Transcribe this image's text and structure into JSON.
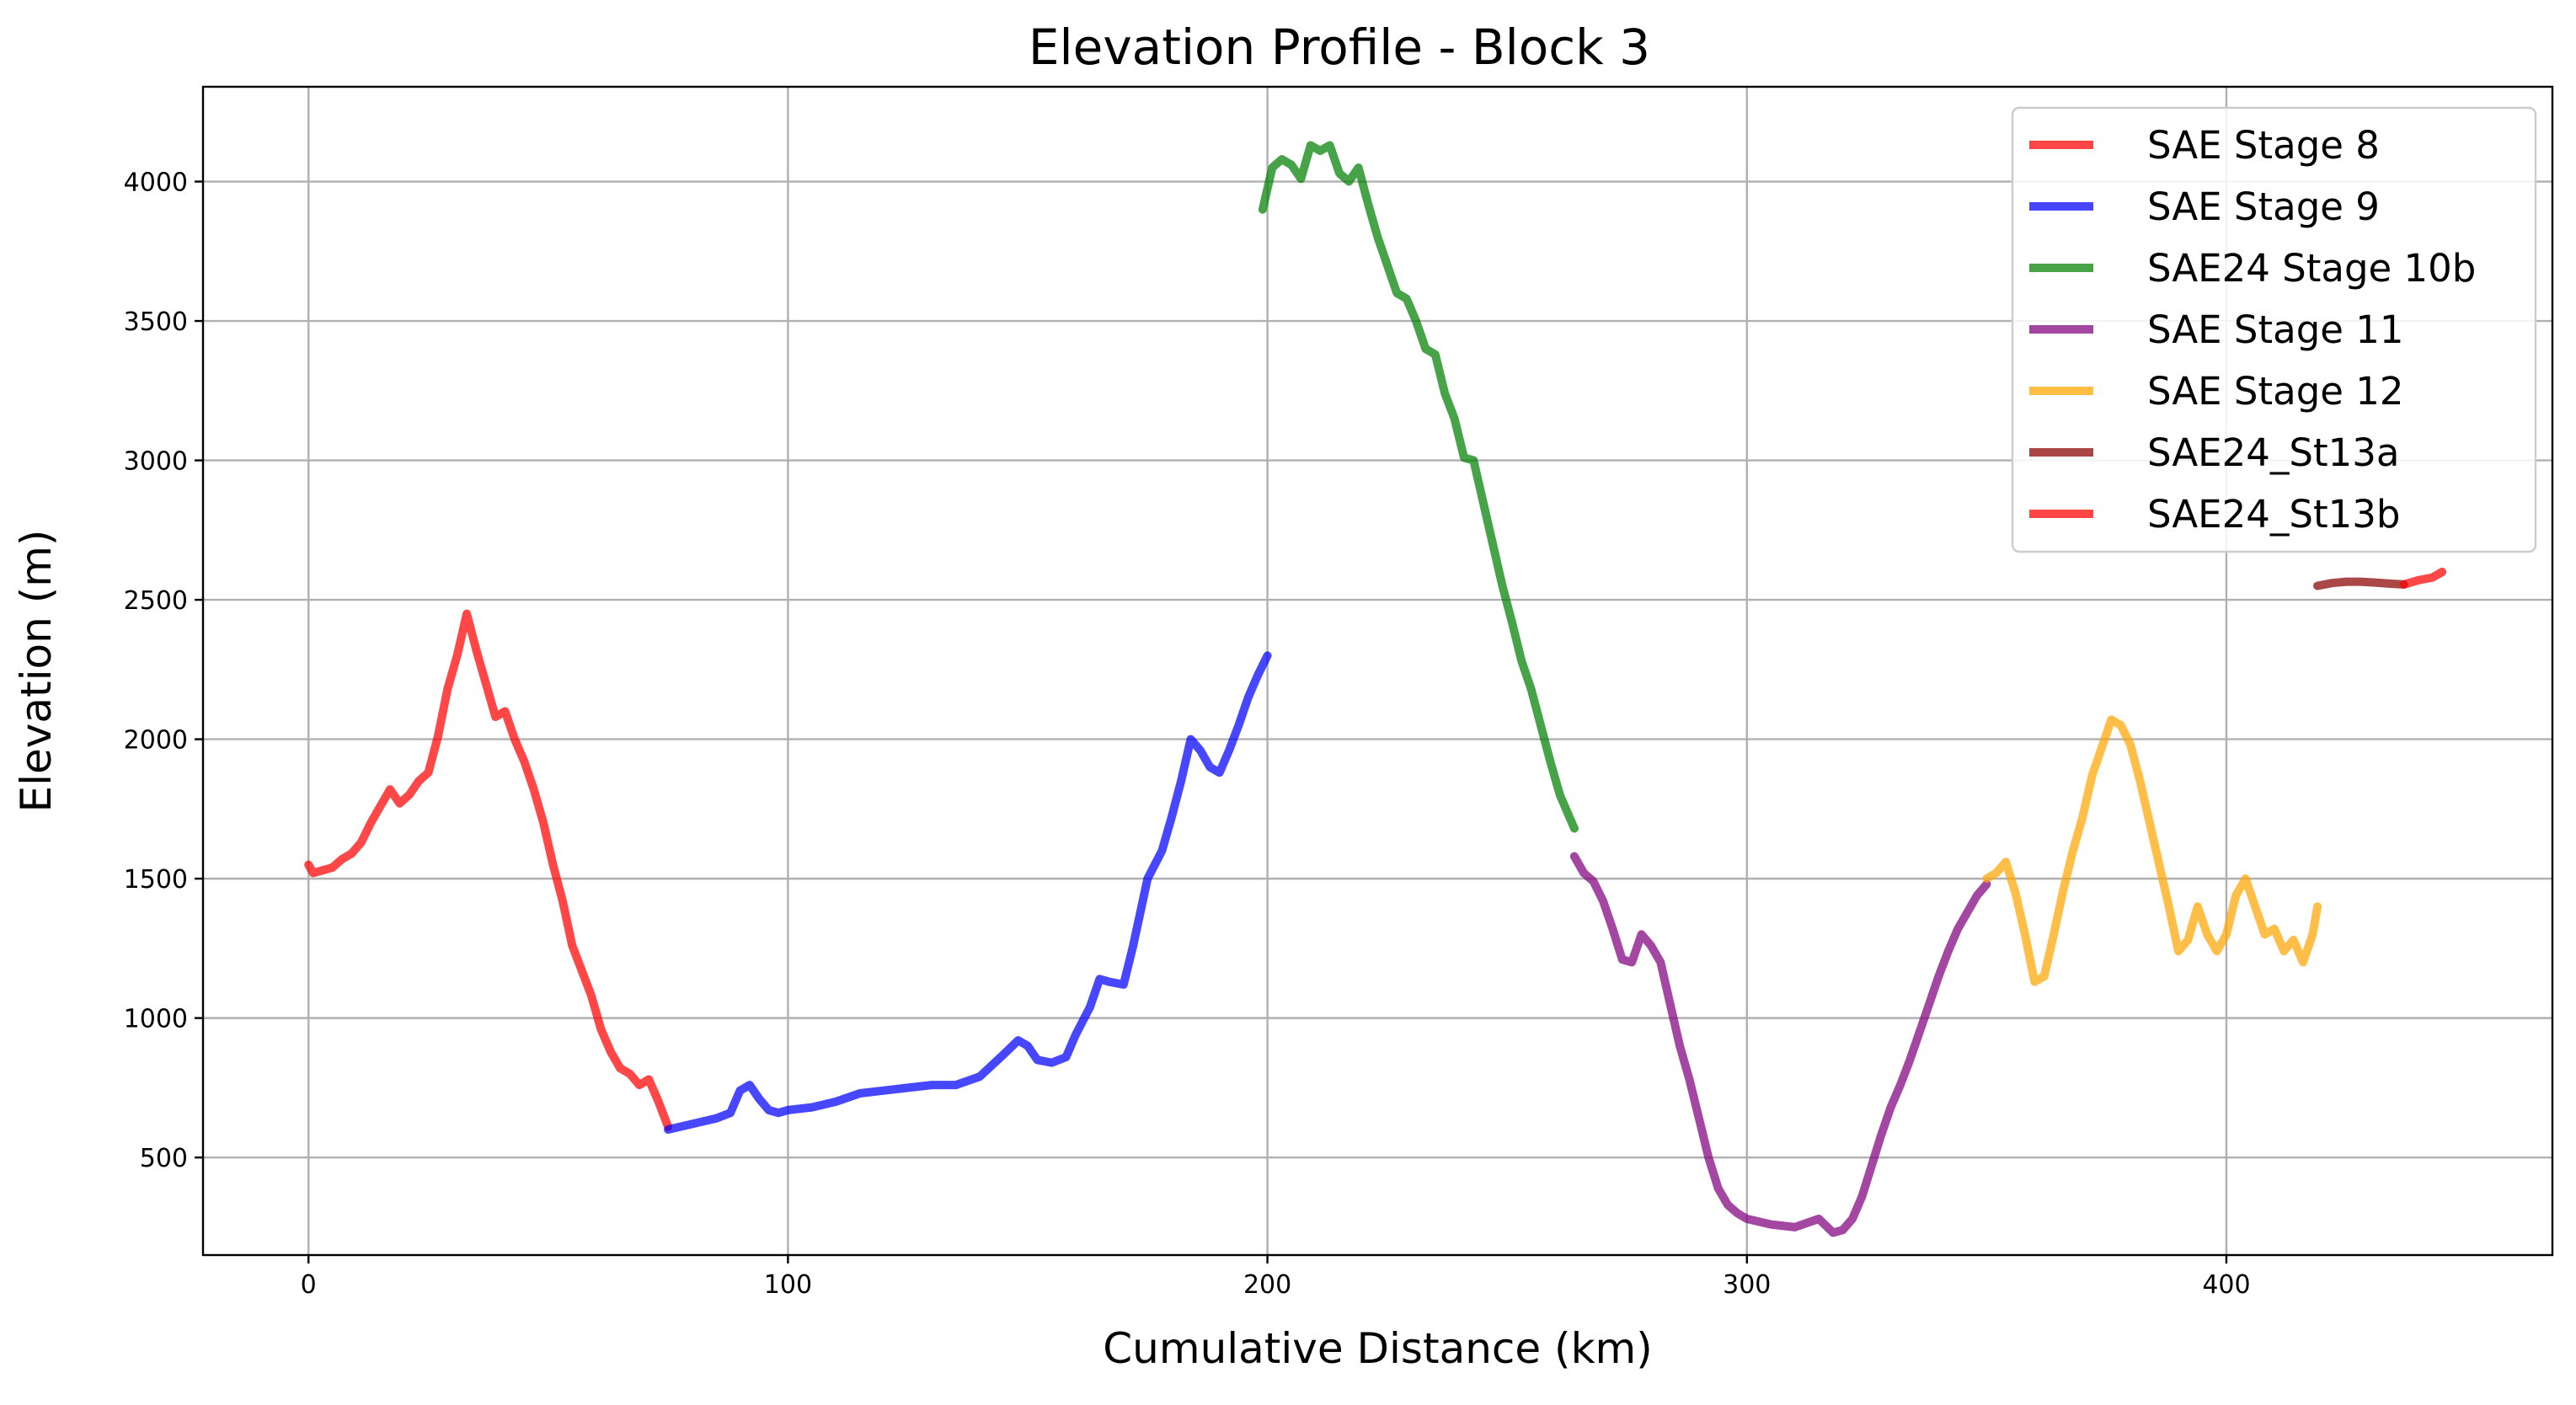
{
  "chart_data": {
    "type": "line",
    "title": "Elevation Profile - Block 3",
    "xlabel": "Cumulative Distance (km)",
    "ylabel": "Elevation (m)",
    "xlim": [
      -22,
      468
    ],
    "ylim": [
      150,
      4340
    ],
    "xticks": [
      0,
      100,
      200,
      300,
      400
    ],
    "yticks": [
      500,
      1000,
      1500,
      2000,
      2500,
      3000,
      3500,
      4000
    ],
    "grid": true,
    "legend_position": "top-right",
    "series": [
      {
        "name": "SAE Stage 8",
        "color": "#ff0000",
        "x": [
          0,
          1,
          3,
          5,
          7,
          9,
          11,
          13,
          15,
          17,
          19,
          21,
          23,
          25,
          27,
          29,
          31,
          33,
          35,
          37,
          39,
          41,
          43,
          45,
          47,
          49,
          51,
          53,
          55,
          57,
          59,
          61,
          63,
          65,
          67,
          69,
          71,
          73,
          75
        ],
        "y": [
          1550,
          1520,
          1530,
          1540,
          1570,
          1590,
          1630,
          1700,
          1760,
          1820,
          1770,
          1800,
          1850,
          1880,
          2010,
          2180,
          2300,
          2450,
          2320,
          2200,
          2080,
          2100,
          2000,
          1920,
          1820,
          1700,
          1550,
          1420,
          1260,
          1170,
          1080,
          960,
          880,
          820,
          800,
          760,
          780,
          700,
          610
        ]
      },
      {
        "name": "SAE Stage 9",
        "color": "#0000ff",
        "x": [
          75,
          80,
          85,
          88,
          90,
          92,
          94,
          96,
          98,
          100,
          105,
          110,
          115,
          120,
          125,
          130,
          135,
          140,
          145,
          148,
          150,
          152,
          155,
          158,
          160,
          163,
          165,
          167,
          170,
          172,
          175,
          178,
          180,
          182,
          184,
          186,
          188,
          190,
          192,
          194,
          196,
          198,
          200
        ],
        "y": [
          600,
          620,
          640,
          660,
          740,
          760,
          710,
          670,
          660,
          670,
          680,
          700,
          730,
          740,
          750,
          760,
          760,
          790,
          870,
          920,
          900,
          850,
          840,
          860,
          940,
          1040,
          1140,
          1130,
          1120,
          1260,
          1500,
          1600,
          1720,
          1850,
          2000,
          1960,
          1900,
          1880,
          1960,
          2050,
          2150,
          2230,
          2300
        ]
      },
      {
        "name": "SAE24 Stage 10b",
        "color": "#008000",
        "x": [
          199,
          201,
          203,
          205,
          207,
          209,
          211,
          213,
          215,
          217,
          219,
          221,
          223,
          225,
          227,
          229,
          231,
          233,
          235,
          237,
          239,
          241,
          243,
          245,
          247,
          249,
          251,
          253,
          255,
          257,
          259,
          261,
          263,
          264
        ],
        "y": [
          3900,
          4050,
          4080,
          4060,
          4010,
          4130,
          4110,
          4130,
          4030,
          4000,
          4050,
          3920,
          3800,
          3700,
          3600,
          3580,
          3500,
          3400,
          3380,
          3240,
          3150,
          3010,
          3000,
          2850,
          2700,
          2550,
          2420,
          2280,
          2180,
          2050,
          1920,
          1800,
          1720,
          1680
        ]
      },
      {
        "name": "SAE Stage 11",
        "color": "#800080",
        "x": [
          264,
          266,
          268,
          270,
          272,
          274,
          276,
          278,
          280,
          282,
          284,
          286,
          288,
          290,
          292,
          294,
          296,
          298,
          300,
          305,
          310,
          315,
          318,
          320,
          322,
          324,
          326,
          328,
          330,
          332,
          334,
          336,
          338,
          340,
          342,
          344,
          346,
          348,
          350
        ],
        "y": [
          1580,
          1520,
          1490,
          1420,
          1320,
          1210,
          1200,
          1300,
          1260,
          1200,
          1050,
          900,
          780,
          640,
          500,
          390,
          330,
          300,
          280,
          260,
          250,
          280,
          230,
          240,
          280,
          360,
          470,
          580,
          680,
          760,
          850,
          950,
          1050,
          1150,
          1240,
          1320,
          1380,
          1440,
          1480
        ]
      },
      {
        "name": "SAE Stage 12",
        "color": "#ffa500",
        "x": [
          350,
          352,
          354,
          356,
          358,
          360,
          362,
          364,
          366,
          368,
          370,
          372,
          374,
          376,
          378,
          380,
          382,
          384,
          386,
          388,
          390,
          392,
          394,
          396,
          398,
          400,
          402,
          404,
          406,
          408,
          410,
          412,
          414,
          416,
          418,
          419
        ],
        "y": [
          1500,
          1520,
          1560,
          1450,
          1300,
          1130,
          1150,
          1300,
          1460,
          1600,
          1720,
          1870,
          1970,
          2070,
          2050,
          1980,
          1850,
          1700,
          1550,
          1400,
          1240,
          1280,
          1400,
          1300,
          1240,
          1300,
          1440,
          1500,
          1400,
          1300,
          1320,
          1240,
          1280,
          1200,
          1300,
          1400
        ]
      },
      {
        "name": "SAE24_St13a",
        "color": "#8b0000",
        "x": [
          419,
          422,
          425,
          428,
          431,
          434,
          437
        ],
        "y": [
          2550,
          2560,
          2565,
          2565,
          2562,
          2558,
          2555
        ]
      },
      {
        "name": "SAE24_St13b",
        "color": "#ff0000",
        "x": [
          437,
          440,
          443,
          445
        ],
        "y": [
          2555,
          2570,
          2580,
          2600
        ]
      }
    ]
  }
}
